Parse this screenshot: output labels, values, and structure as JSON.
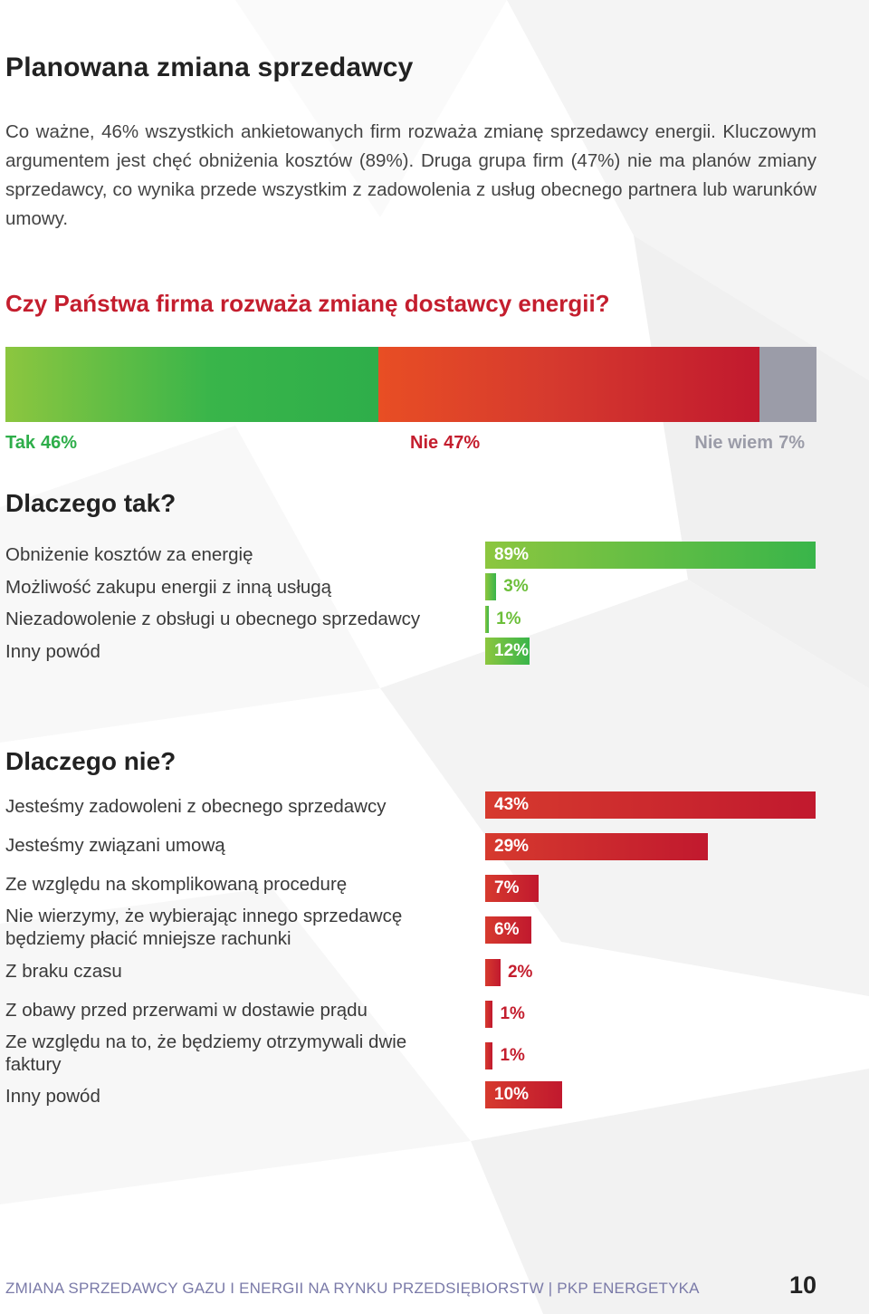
{
  "title": "Planowana zmiana sprzedawcy",
  "intro": "Co ważne, 46% wszystkich ankietowanych firm rozważa zmianę sprzedawcy energii. Kluczowym argumentem jest chęć obniżenia kosztów (89%). Druga grupa firm (47%) nie ma planów zmiany sprzedawcy, co wynika przede wszystkim z zadowolenia z usług obecnego partnera lub warunków umowy.",
  "question": "Czy Państwa firma rozważa zmianę dostawcy energii?",
  "colors": {
    "green": "#39b54a",
    "red": "#c1192e",
    "gray": "#9b9ca8"
  },
  "chart_data": [
    {
      "type": "bar",
      "categories": [
        "Tak",
        "Nie",
        "Nie wiem"
      ],
      "values": [
        46,
        47,
        7
      ],
      "value_labels": [
        "46%",
        "47%",
        "7%"
      ],
      "title": "Czy Państwa firma rozważa zmianę dostawcy energii?"
    },
    {
      "type": "bar",
      "title": "Dlaczego tak?",
      "categories": [
        "Obniżenie kosztów za energię",
        "Możliwość zakupu energii z inną usługą",
        "Niezadowolenie z obsługi u obecnego sprzedawcy",
        "Inny powód"
      ],
      "values": [
        89,
        3,
        1,
        12
      ],
      "value_labels": [
        "89%",
        "3%",
        "1%",
        "12%"
      ],
      "ylim": [
        0,
        89
      ]
    },
    {
      "type": "bar",
      "title": "Dlaczego nie?",
      "categories": [
        "Jesteśmy zadowoleni z obecnego sprzedawcy",
        "Jesteśmy związani umową",
        "Ze względu na skomplikowaną procedurę",
        "Nie wierzymy, że wybierając innego sprzedawcę będziemy płacić mniejsze rachunki",
        "Z braku czasu",
        "Z obawy przed przerwami w dostawie prądu",
        "Ze względu na to, że będziemy otrzymywali dwie faktury",
        "Inny powód"
      ],
      "values": [
        43,
        29,
        7,
        6,
        2,
        1,
        1,
        10
      ],
      "value_labels": [
        "43%",
        "29%",
        "7%",
        "6%",
        "2%",
        "1%",
        "1%",
        "10%"
      ],
      "ylim": [
        0,
        43
      ]
    }
  ],
  "footer": "ZMIANA SPRZEDAWCY GAZU I ENERGII NA RYNKU PRZEDSIĘBIORSTW | PKP ENERGETYKA",
  "page_number": "10"
}
